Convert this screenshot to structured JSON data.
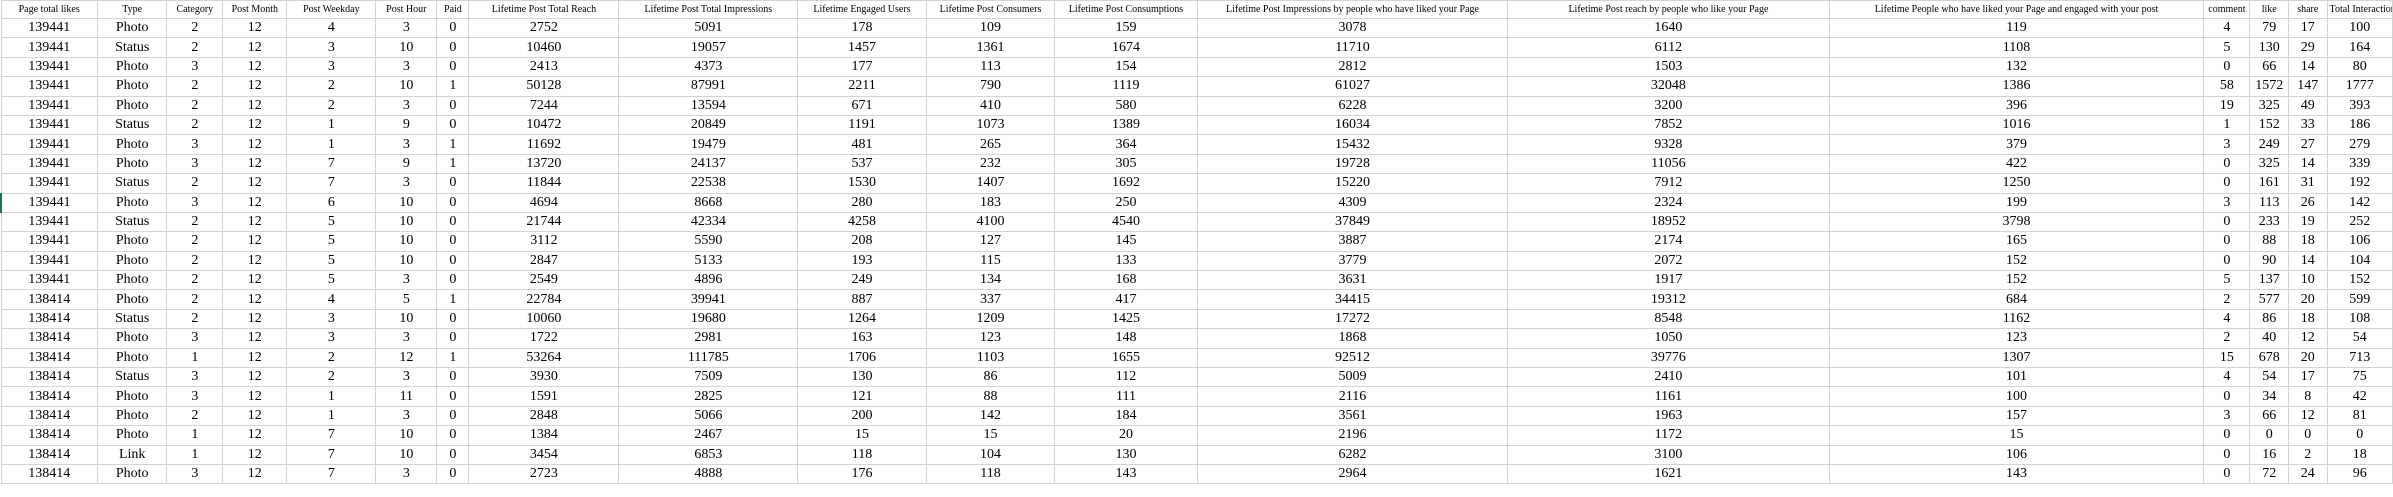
{
  "sheet": {
    "accent_color": "#217346",
    "gridline_color": "#d4d4d4",
    "selected_row_index": 9,
    "columns": [
      "Page total likes",
      "Type",
      "Category",
      "Post Month",
      "Post Weekday",
      "Post Hour",
      "Paid",
      "Lifetime Post Total Reach",
      "Lifetime Post Total Impressions",
      "Lifetime Engaged Users",
      "Lifetime Post Consumers",
      "Lifetime Post Consumptions",
      "Lifetime Post Impressions by people who have liked your Page",
      "Lifetime Post reach by people who like your Page",
      "Lifetime People who have liked your Page and engaged with your post",
      "comment",
      "like",
      "share",
      "Total Interactions"
    ],
    "rows": [
      [
        "139441",
        "Photo",
        "2",
        "12",
        "4",
        "3",
        "0",
        "2752",
        "5091",
        "178",
        "109",
        "159",
        "3078",
        "1640",
        "119",
        "4",
        "79",
        "17",
        "100"
      ],
      [
        "139441",
        "Status",
        "2",
        "12",
        "3",
        "10",
        "0",
        "10460",
        "19057",
        "1457",
        "1361",
        "1674",
        "11710",
        "6112",
        "1108",
        "5",
        "130",
        "29",
        "164"
      ],
      [
        "139441",
        "Photo",
        "3",
        "12",
        "3",
        "3",
        "0",
        "2413",
        "4373",
        "177",
        "113",
        "154",
        "2812",
        "1503",
        "132",
        "0",
        "66",
        "14",
        "80"
      ],
      [
        "139441",
        "Photo",
        "2",
        "12",
        "2",
        "10",
        "1",
        "50128",
        "87991",
        "2211",
        "790",
        "1119",
        "61027",
        "32048",
        "1386",
        "58",
        "1572",
        "147",
        "1777"
      ],
      [
        "139441",
        "Photo",
        "2",
        "12",
        "2",
        "3",
        "0",
        "7244",
        "13594",
        "671",
        "410",
        "580",
        "6228",
        "3200",
        "396",
        "19",
        "325",
        "49",
        "393"
      ],
      [
        "139441",
        "Status",
        "2",
        "12",
        "1",
        "9",
        "0",
        "10472",
        "20849",
        "1191",
        "1073",
        "1389",
        "16034",
        "7852",
        "1016",
        "1",
        "152",
        "33",
        "186"
      ],
      [
        "139441",
        "Photo",
        "3",
        "12",
        "1",
        "3",
        "1",
        "11692",
        "19479",
        "481",
        "265",
        "364",
        "15432",
        "9328",
        "379",
        "3",
        "249",
        "27",
        "279"
      ],
      [
        "139441",
        "Photo",
        "3",
        "12",
        "7",
        "9",
        "1",
        "13720",
        "24137",
        "537",
        "232",
        "305",
        "19728",
        "11056",
        "422",
        "0",
        "325",
        "14",
        "339"
      ],
      [
        "139441",
        "Status",
        "2",
        "12",
        "7",
        "3",
        "0",
        "11844",
        "22538",
        "1530",
        "1407",
        "1692",
        "15220",
        "7912",
        "1250",
        "0",
        "161",
        "31",
        "192"
      ],
      [
        "139441",
        "Photo",
        "3",
        "12",
        "6",
        "10",
        "0",
        "4694",
        "8668",
        "280",
        "183",
        "250",
        "4309",
        "2324",
        "199",
        "3",
        "113",
        "26",
        "142"
      ],
      [
        "139441",
        "Status",
        "2",
        "12",
        "5",
        "10",
        "0",
        "21744",
        "42334",
        "4258",
        "4100",
        "4540",
        "37849",
        "18952",
        "3798",
        "0",
        "233",
        "19",
        "252"
      ],
      [
        "139441",
        "Photo",
        "2",
        "12",
        "5",
        "10",
        "0",
        "3112",
        "5590",
        "208",
        "127",
        "145",
        "3887",
        "2174",
        "165",
        "0",
        "88",
        "18",
        "106"
      ],
      [
        "139441",
        "Photo",
        "2",
        "12",
        "5",
        "10",
        "0",
        "2847",
        "5133",
        "193",
        "115",
        "133",
        "3779",
        "2072",
        "152",
        "0",
        "90",
        "14",
        "104"
      ],
      [
        "139441",
        "Photo",
        "2",
        "12",
        "5",
        "3",
        "0",
        "2549",
        "4896",
        "249",
        "134",
        "168",
        "3631",
        "1917",
        "152",
        "5",
        "137",
        "10",
        "152"
      ],
      [
        "138414",
        "Photo",
        "2",
        "12",
        "4",
        "5",
        "1",
        "22784",
        "39941",
        "887",
        "337",
        "417",
        "34415",
        "19312",
        "684",
        "2",
        "577",
        "20",
        "599"
      ],
      [
        "138414",
        "Status",
        "2",
        "12",
        "3",
        "10",
        "0",
        "10060",
        "19680",
        "1264",
        "1209",
        "1425",
        "17272",
        "8548",
        "1162",
        "4",
        "86",
        "18",
        "108"
      ],
      [
        "138414",
        "Photo",
        "3",
        "12",
        "3",
        "3",
        "0",
        "1722",
        "2981",
        "163",
        "123",
        "148",
        "1868",
        "1050",
        "123",
        "2",
        "40",
        "12",
        "54"
      ],
      [
        "138414",
        "Photo",
        "1",
        "12",
        "2",
        "12",
        "1",
        "53264",
        "111785",
        "1706",
        "1103",
        "1655",
        "92512",
        "39776",
        "1307",
        "15",
        "678",
        "20",
        "713"
      ],
      [
        "138414",
        "Status",
        "3",
        "12",
        "2",
        "3",
        "0",
        "3930",
        "7509",
        "130",
        "86",
        "112",
        "5009",
        "2410",
        "101",
        "4",
        "54",
        "17",
        "75"
      ],
      [
        "138414",
        "Photo",
        "3",
        "12",
        "1",
        "11",
        "0",
        "1591",
        "2825",
        "121",
        "88",
        "111",
        "2116",
        "1161",
        "100",
        "0",
        "34",
        "8",
        "42"
      ],
      [
        "138414",
        "Photo",
        "2",
        "12",
        "1",
        "3",
        "0",
        "2848",
        "5066",
        "200",
        "142",
        "184",
        "3561",
        "1963",
        "157",
        "3",
        "66",
        "12",
        "81"
      ],
      [
        "138414",
        "Photo",
        "1",
        "12",
        "7",
        "10",
        "0",
        "1384",
        "2467",
        "15",
        "15",
        "20",
        "2196",
        "1172",
        "15",
        "0",
        "0",
        "0",
        "0"
      ],
      [
        "138414",
        "Link",
        "1",
        "12",
        "7",
        "10",
        "0",
        "3454",
        "6853",
        "118",
        "104",
        "130",
        "6282",
        "3100",
        "106",
        "0",
        "16",
        "2",
        "18"
      ],
      [
        "138414",
        "Photo",
        "3",
        "12",
        "7",
        "3",
        "0",
        "2723",
        "4888",
        "176",
        "118",
        "143",
        "2964",
        "1621",
        "143",
        "0",
        "72",
        "24",
        "96"
      ]
    ]
  }
}
